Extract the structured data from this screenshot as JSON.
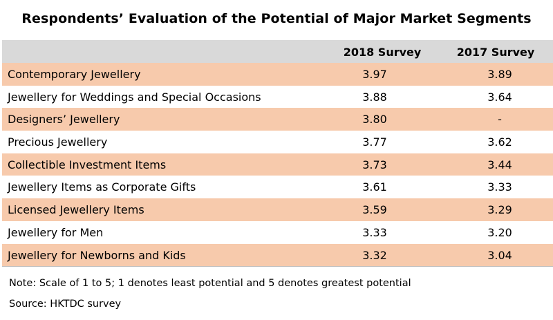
{
  "chart_data": {
    "type": "table",
    "title": "Respondents’ Evaluation of the Potential of Major Market Segments",
    "columns": [
      "",
      "2018 Survey",
      "2017 Survey"
    ],
    "rows": [
      {
        "segment": "Contemporary Jewellery",
        "y2018": "3.97",
        "y2017": "3.89"
      },
      {
        "segment": "Jewellery for Weddings and Special Occasions",
        "y2018": "3.88",
        "y2017": "3.64"
      },
      {
        "segment": "Designers’ Jewellery",
        "y2018": "3.80",
        "y2017": "-"
      },
      {
        "segment": "Precious Jewellery",
        "y2018": "3.77",
        "y2017": "3.62"
      },
      {
        "segment": "Collectible Investment Items",
        "y2018": "3.73",
        "y2017": "3.44"
      },
      {
        "segment": "Jewellery Items as Corporate Gifts",
        "y2018": "3.61",
        "y2017": "3.33"
      },
      {
        "segment": "Licensed Jewellery Items",
        "y2018": "3.59",
        "y2017": "3.29"
      },
      {
        "segment": "Jewellery for Men",
        "y2018": "3.33",
        "y2017": "3.20"
      },
      {
        "segment": "Jewellery for Newborns and Kids",
        "y2018": "3.32",
        "y2017": "3.04"
      }
    ],
    "note": "Note: Scale of 1 to 5; 1 denotes least potential and 5 denotes greatest potential",
    "source": "Source: HKTDC survey"
  },
  "colors": {
    "header_bg": "#d9d9d9",
    "stripe_bg": "#f7caac"
  }
}
